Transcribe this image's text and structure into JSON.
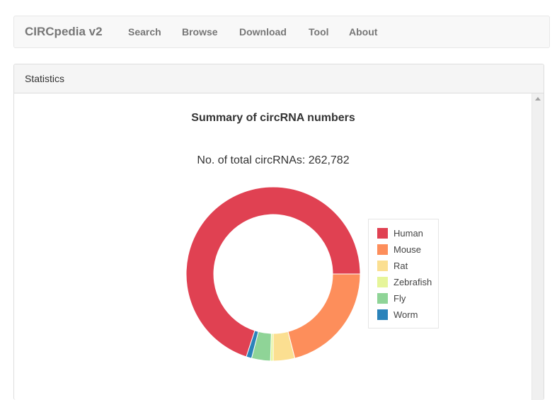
{
  "navbar": {
    "brand": "CIRCpedia v2",
    "items": [
      {
        "label": "Search"
      },
      {
        "label": "Browse"
      },
      {
        "label": "Download"
      },
      {
        "label": "Tool"
      },
      {
        "label": "About"
      }
    ]
  },
  "panel": {
    "heading": "Statistics"
  },
  "chart_data": {
    "type": "pie",
    "title": "Summary of circRNA numbers",
    "subtitle": "No. of total circRNAs: 262,782",
    "legend_position": "right",
    "categories": [
      "Human",
      "Mouse",
      "Rat",
      "Zebrafish",
      "Fly",
      "Worm"
    ],
    "values": [
      183943,
      55185,
      10511,
      1314,
      9198,
      2631
    ],
    "colors": [
      "#e04152",
      "#fd8e5b",
      "#fbdf91",
      "#e6f59a",
      "#8fd497",
      "#2b83ba"
    ]
  }
}
